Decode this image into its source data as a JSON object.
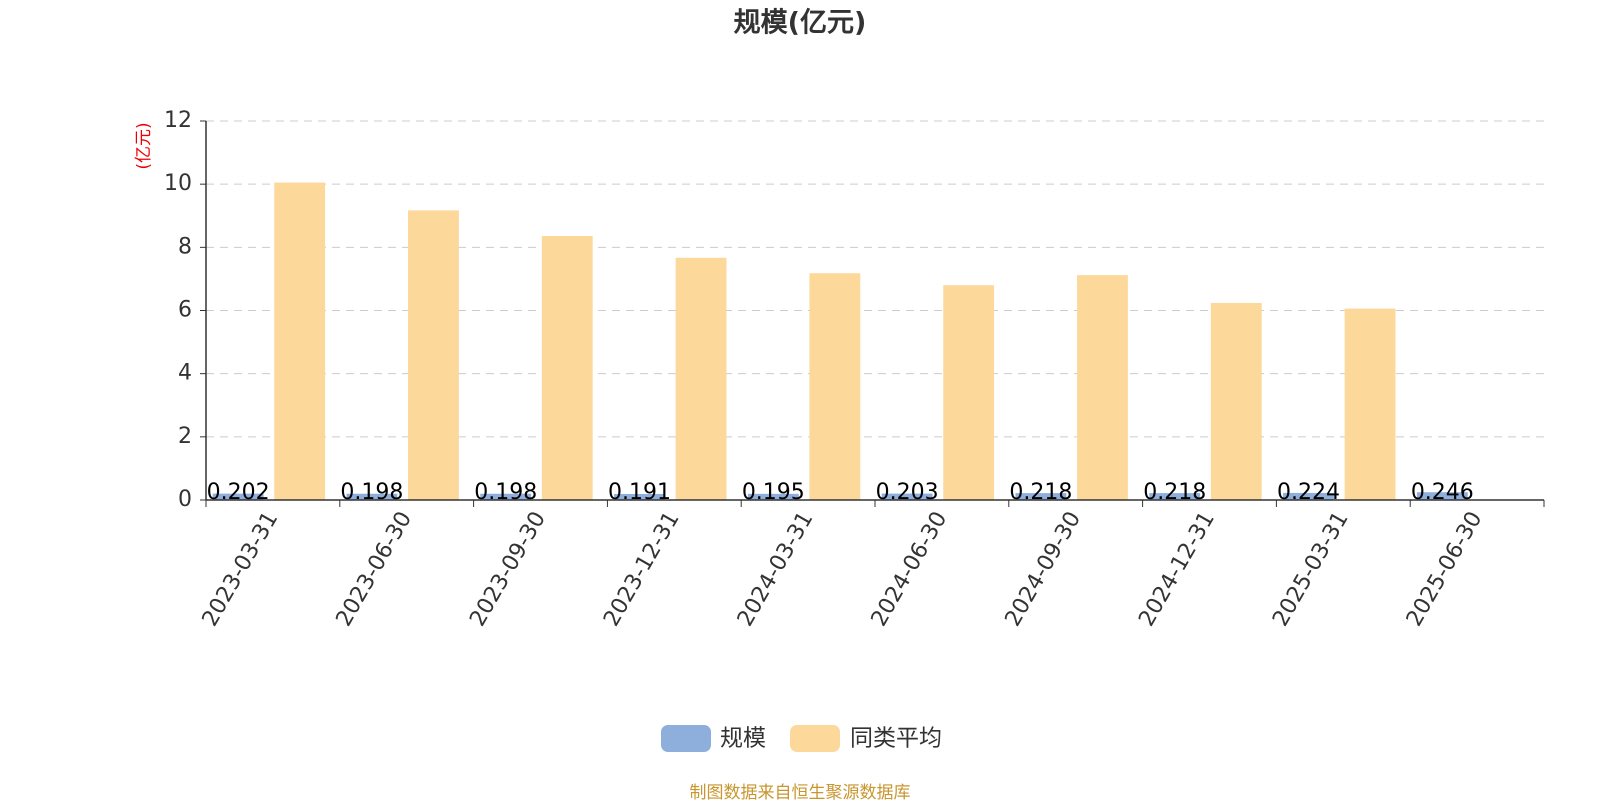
{
  "chart_data": {
    "type": "bar",
    "title": "规模(亿元)",
    "y_label": "(亿元)",
    "categories": [
      "2023-03-31",
      "2023-06-30",
      "2023-09-30",
      "2023-12-31",
      "2024-03-31",
      "2024-06-30",
      "2024-09-30",
      "2024-12-31",
      "2025-03-31",
      "2025-06-30"
    ],
    "series": [
      {
        "name": "规模",
        "color": "#8eaedc",
        "values": [
          0.202,
          0.198,
          0.198,
          0.191,
          0.195,
          0.203,
          0.218,
          0.218,
          0.224,
          0.246
        ]
      },
      {
        "name": "同类平均",
        "color": "#fdd89b",
        "values": [
          10.05,
          9.17,
          8.36,
          7.67,
          7.18,
          6.8,
          7.12,
          6.24,
          6.06,
          null
        ]
      }
    ],
    "ylim": [
      0,
      12
    ],
    "yticks": [
      0,
      2,
      4,
      6,
      8,
      10,
      12
    ],
    "grid": true,
    "source": "制图数据来自恒生聚源数据库"
  }
}
